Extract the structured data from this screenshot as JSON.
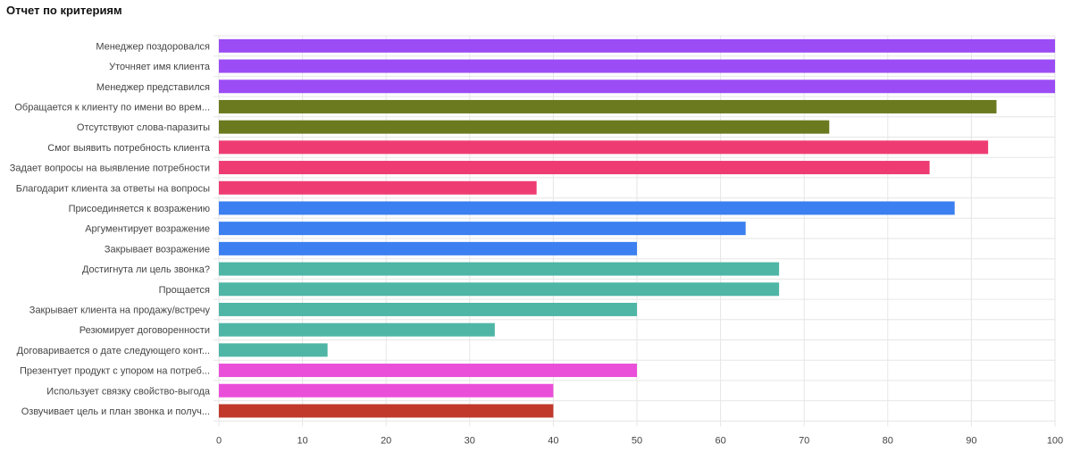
{
  "header": {
    "title": "Отчет по критериям"
  },
  "colors": {
    "purple": "#9b4cf5",
    "olive": "#6b7a1f",
    "pink": "#ee3c73",
    "blue": "#3b7ff0",
    "teal": "#4fb6a6",
    "magenta": "#ea4fd9",
    "red": "#c0392b",
    "grid": "#e6e6e6",
    "axis_text": "#444444"
  },
  "chart_data": {
    "type": "bar",
    "orientation": "horizontal",
    "title": "",
    "xlabel": "",
    "ylabel": "",
    "xlim": [
      0,
      100
    ],
    "x_ticks": [
      0,
      10,
      20,
      30,
      40,
      50,
      60,
      70,
      80,
      90,
      100
    ],
    "grid": true,
    "legend": "none",
    "categories": [
      "Менеджер поздоровался",
      "Уточняет имя клиента",
      "Менеджер представился",
      "Обращается к клиенту по имени во врем...",
      "Отсутствуют слова-паразиты",
      "Смог выявить потребность клиента",
      "Задает вопросы на выявление потребности",
      "Благодарит клиента за ответы на вопросы",
      "Присоединяется к возражению",
      "Аргументирует возражение",
      "Закрывает возражение",
      "Достигнута ли цель звонка?",
      "Прощается",
      "Закрывает клиента на продажу/встречу",
      "Резюмирует договоренности",
      "Договаривается о дате следующего конт...",
      "Презентует продукт с упором на потреб...",
      "Использует связку свойство-выгода",
      "Озвучивает цель и план звонка и получ..."
    ],
    "values": [
      100,
      100,
      100,
      93,
      73,
      92,
      85,
      38,
      88,
      63,
      50,
      67,
      67,
      50,
      33,
      13,
      50,
      40,
      40
    ],
    "bar_colors": [
      "#9b4cf5",
      "#9b4cf5",
      "#9b4cf5",
      "#6b7a1f",
      "#6b7a1f",
      "#ee3c73",
      "#ee3c73",
      "#ee3c73",
      "#3b7ff0",
      "#3b7ff0",
      "#3b7ff0",
      "#4fb6a6",
      "#4fb6a6",
      "#4fb6a6",
      "#4fb6a6",
      "#4fb6a6",
      "#ea4fd9",
      "#ea4fd9",
      "#c0392b"
    ]
  }
}
